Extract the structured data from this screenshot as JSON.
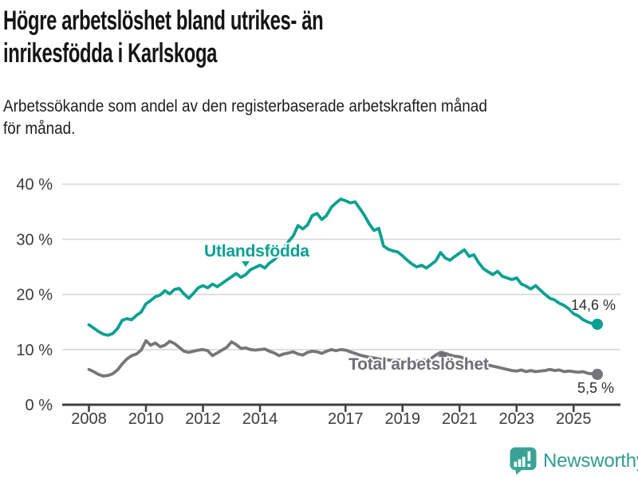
{
  "header": {
    "title_lines": [
      "Högre arbetslöshet bland utrikes- än",
      "inrikesfödda i Karlskoga"
    ],
    "subtitle_lines": [
      "Arbetssökande som andel av den registerbaserade arbetskraften månad",
      "för månad."
    ]
  },
  "chart_data": {
    "type": "line",
    "title": "Högre arbetslöshet bland utrikes- än inrikesfödda i Karlskoga",
    "subtitle": "Arbetssökande som andel av den registerbaserade arbetskraften månad för månad.",
    "xlabel": "",
    "ylabel": "",
    "ylim": [
      0,
      40
    ],
    "grid": "horizontal",
    "x_start": 2008.0,
    "x_step": 0.1666667,
    "yticks": [
      {
        "value": 0,
        "label": "0 %"
      },
      {
        "value": 10,
        "label": "10 %"
      },
      {
        "value": 20,
        "label": "20 %"
      },
      {
        "value": 30,
        "label": "30 %"
      },
      {
        "value": 40,
        "label": "40 %"
      }
    ],
    "xticks": [
      {
        "value": 2008,
        "label": "2008"
      },
      {
        "value": 2010,
        "label": "2010"
      },
      {
        "value": 2012,
        "label": "2012"
      },
      {
        "value": 2014,
        "label": "2014"
      },
      {
        "value": 2017,
        "label": "2017"
      },
      {
        "value": 2019,
        "label": "2019"
      },
      {
        "value": 2021,
        "label": "2021"
      },
      {
        "value": 2023,
        "label": "2023"
      },
      {
        "value": 2025,
        "label": "2025"
      }
    ],
    "series": [
      {
        "name": "Utlandsfödda",
        "color": "#0aa092",
        "end_label": "14,6 %",
        "end_value": 14.6,
        "values": [
          14.5,
          13.9,
          13.3,
          12.8,
          12.6,
          12.9,
          13.8,
          15.3,
          15.6,
          15.4,
          16.2,
          16.8,
          18.3,
          18.9,
          19.6,
          19.9,
          20.7,
          20.1,
          20.9,
          21.1,
          20.1,
          19.3,
          20.2,
          21.2,
          21.6,
          21.2,
          21.9,
          21.4,
          22.0,
          22.6,
          23.2,
          23.8,
          23.1,
          23.6,
          24.5,
          24.9,
          25.3,
          24.8,
          25.7,
          26.3,
          27.2,
          28.4,
          29.6,
          30.6,
          32.5,
          31.9,
          32.6,
          34.3,
          34.7,
          33.6,
          34.3,
          35.8,
          36.6,
          37.3,
          37.0,
          36.6,
          36.8,
          35.6,
          34.3,
          32.8,
          31.6,
          32.0,
          28.8,
          28.2,
          27.9,
          27.7,
          27.0,
          26.2,
          25.5,
          25.0,
          25.3,
          24.8,
          25.4,
          26.1,
          27.6,
          26.6,
          26.2,
          26.9,
          27.5,
          28.1,
          26.9,
          27.2,
          25.8,
          24.7,
          24.1,
          23.6,
          24.2,
          23.3,
          23.0,
          22.7,
          23.0,
          21.9,
          21.5,
          21.0,
          21.6,
          20.8,
          20.0,
          19.3,
          19.0,
          18.4,
          18.0,
          17.4,
          16.5,
          16.1,
          15.4,
          15.0,
          14.7,
          14.6
        ]
      },
      {
        "name": "Total arbetslöshet",
        "color": "#76767a",
        "end_label": "5,5 %",
        "end_value": 5.5,
        "values": [
          6.4,
          6.0,
          5.5,
          5.2,
          5.3,
          5.6,
          6.3,
          7.4,
          8.3,
          8.9,
          9.2,
          9.9,
          11.6,
          10.8,
          11.2,
          10.5,
          10.8,
          11.5,
          11.1,
          10.4,
          9.7,
          9.5,
          9.7,
          9.9,
          10.0,
          9.8,
          8.9,
          9.4,
          9.9,
          10.4,
          11.4,
          10.9,
          10.2,
          10.3,
          10.0,
          9.9,
          10.0,
          10.1,
          9.7,
          9.4,
          8.9,
          9.2,
          9.4,
          9.6,
          9.2,
          9.0,
          9.5,
          9.7,
          9.6,
          9.3,
          9.7,
          10.0,
          9.8,
          10.0,
          9.9,
          9.6,
          9.3,
          9.0,
          8.8,
          8.6,
          8.5,
          8.3,
          8.2,
          8.1,
          8.0,
          8.1,
          8.0,
          7.9,
          7.8,
          7.9,
          8.0,
          8.1,
          8.4,
          9.0,
          9.5,
          9.3,
          9.0,
          8.8,
          8.7,
          8.4,
          8.1,
          7.8,
          7.6,
          7.4,
          7.2,
          7.0,
          6.8,
          6.6,
          6.4,
          6.2,
          6.1,
          6.3,
          6.0,
          6.2,
          6.0,
          6.1,
          6.2,
          6.4,
          6.2,
          6.3,
          6.0,
          6.1,
          6.0,
          5.9,
          6.0,
          5.7,
          5.6,
          5.5
        ]
      }
    ],
    "legend_position": "inline-labels",
    "colors": {
      "accent_teal": "#0aa092",
      "line_gray": "#76767a",
      "grid": "#d9d9d9",
      "axis": "#3f3f3f",
      "text": "#3b3b3b"
    }
  },
  "footer": {
    "brand": "Newsworthy"
  }
}
